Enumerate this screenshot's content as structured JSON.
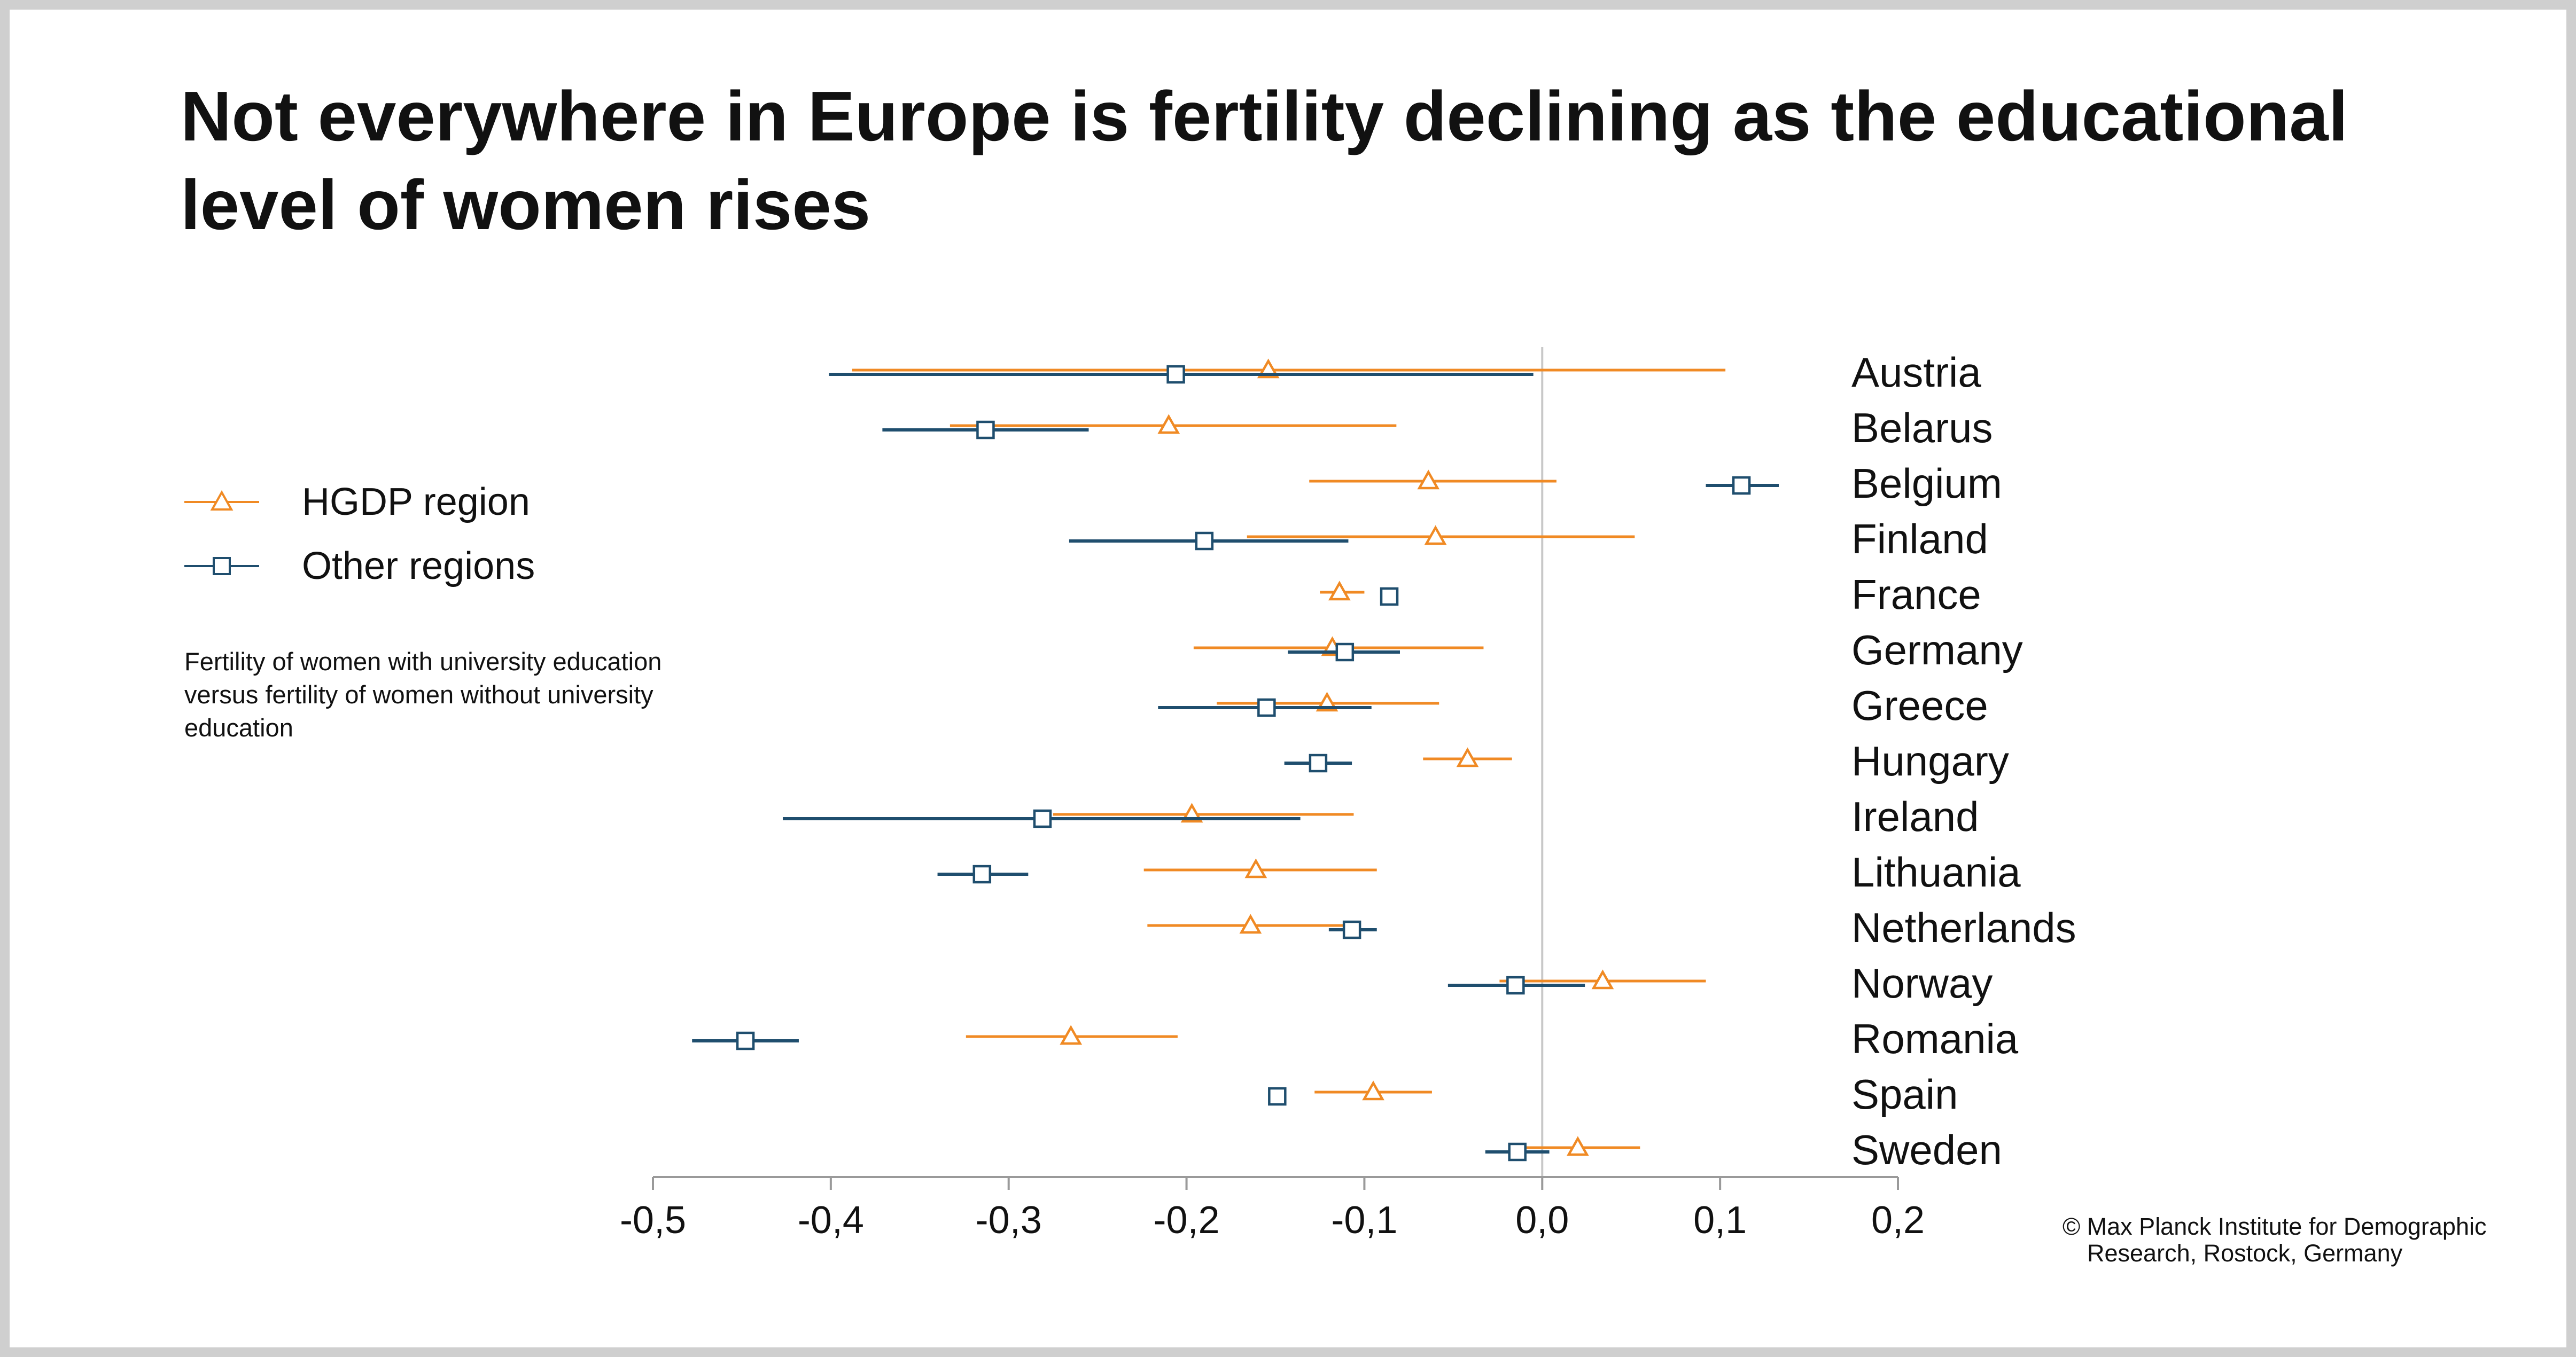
{
  "title": "Not everywhere in Europe is fertility declining as the educational level of women rises",
  "legend": {
    "items": [
      {
        "label": "HGDP region",
        "color": "#F08A24",
        "marker": "triangle"
      },
      {
        "label": "Other regions",
        "color": "#1F4E6E",
        "marker": "square"
      }
    ]
  },
  "note": "Fertility of women with university education versus fertility of women without university education",
  "credit": {
    "line1": "© Max Planck Institute for Demographic",
    "line2": "Research, Rostock, Germany"
  },
  "colors": {
    "hgdp": "#F08A24",
    "other": "#1F4E6E",
    "zero_line": "#C8C8C8",
    "axis": "#9A9A9A"
  },
  "chart_data": {
    "type": "scatter",
    "subtype": "dot-whisker",
    "xlim": [
      -0.5,
      0.2
    ],
    "x_ticks": [
      -0.5,
      -0.4,
      -0.3,
      -0.2,
      -0.1,
      0.0,
      0.1,
      0.2
    ],
    "x_tick_labels": [
      "-0,5",
      "-0,4",
      "-0,3",
      "-0,2",
      "-0,1",
      "0,0",
      "0,1",
      "0,2"
    ],
    "reference_line": 0.0,
    "categories": [
      "Austria",
      "Belarus",
      "Belgium",
      "Finland",
      "France",
      "Germany",
      "Greece",
      "Hungary",
      "Ireland",
      "Lithuania",
      "Netherlands",
      "Norway",
      "Romania",
      "Spain",
      "Sweden"
    ],
    "series": [
      {
        "name": "HGDP region",
        "marker": "triangle",
        "estimate": [
          -0.154,
          -0.21,
          -0.064,
          -0.06,
          -0.114,
          -0.118,
          -0.121,
          -0.042,
          -0.197,
          -0.161,
          -0.164,
          0.034,
          -0.265,
          -0.095,
          0.02
        ],
        "lower": [
          -0.388,
          -0.333,
          -0.131,
          -0.166,
          -0.125,
          -0.196,
          -0.183,
          -0.067,
          -0.275,
          -0.224,
          -0.222,
          -0.024,
          -0.324,
          -0.128,
          -0.015
        ],
        "upper": [
          0.103,
          -0.082,
          0.008,
          0.052,
          -0.1,
          -0.033,
          -0.058,
          -0.017,
          -0.106,
          -0.093,
          -0.106,
          0.092,
          -0.205,
          -0.062,
          0.055
        ]
      },
      {
        "name": "Other regions",
        "marker": "square",
        "estimate": [
          -0.206,
          -0.313,
          0.112,
          -0.19,
          -0.086,
          -0.111,
          -0.155,
          -0.126,
          -0.281,
          -0.315,
          -0.107,
          -0.015,
          -0.448,
          -0.149,
          -0.014
        ],
        "lower": [
          -0.401,
          -0.371,
          0.092,
          -0.266,
          -0.09,
          -0.143,
          -0.216,
          -0.145,
          -0.427,
          -0.34,
          -0.12,
          -0.053,
          -0.478,
          -0.153,
          -0.032
        ],
        "upper": [
          -0.005,
          -0.255,
          0.133,
          -0.109,
          -0.082,
          -0.08,
          -0.096,
          -0.107,
          -0.136,
          -0.289,
          -0.093,
          0.024,
          -0.418,
          -0.145,
          0.004
        ]
      }
    ]
  }
}
